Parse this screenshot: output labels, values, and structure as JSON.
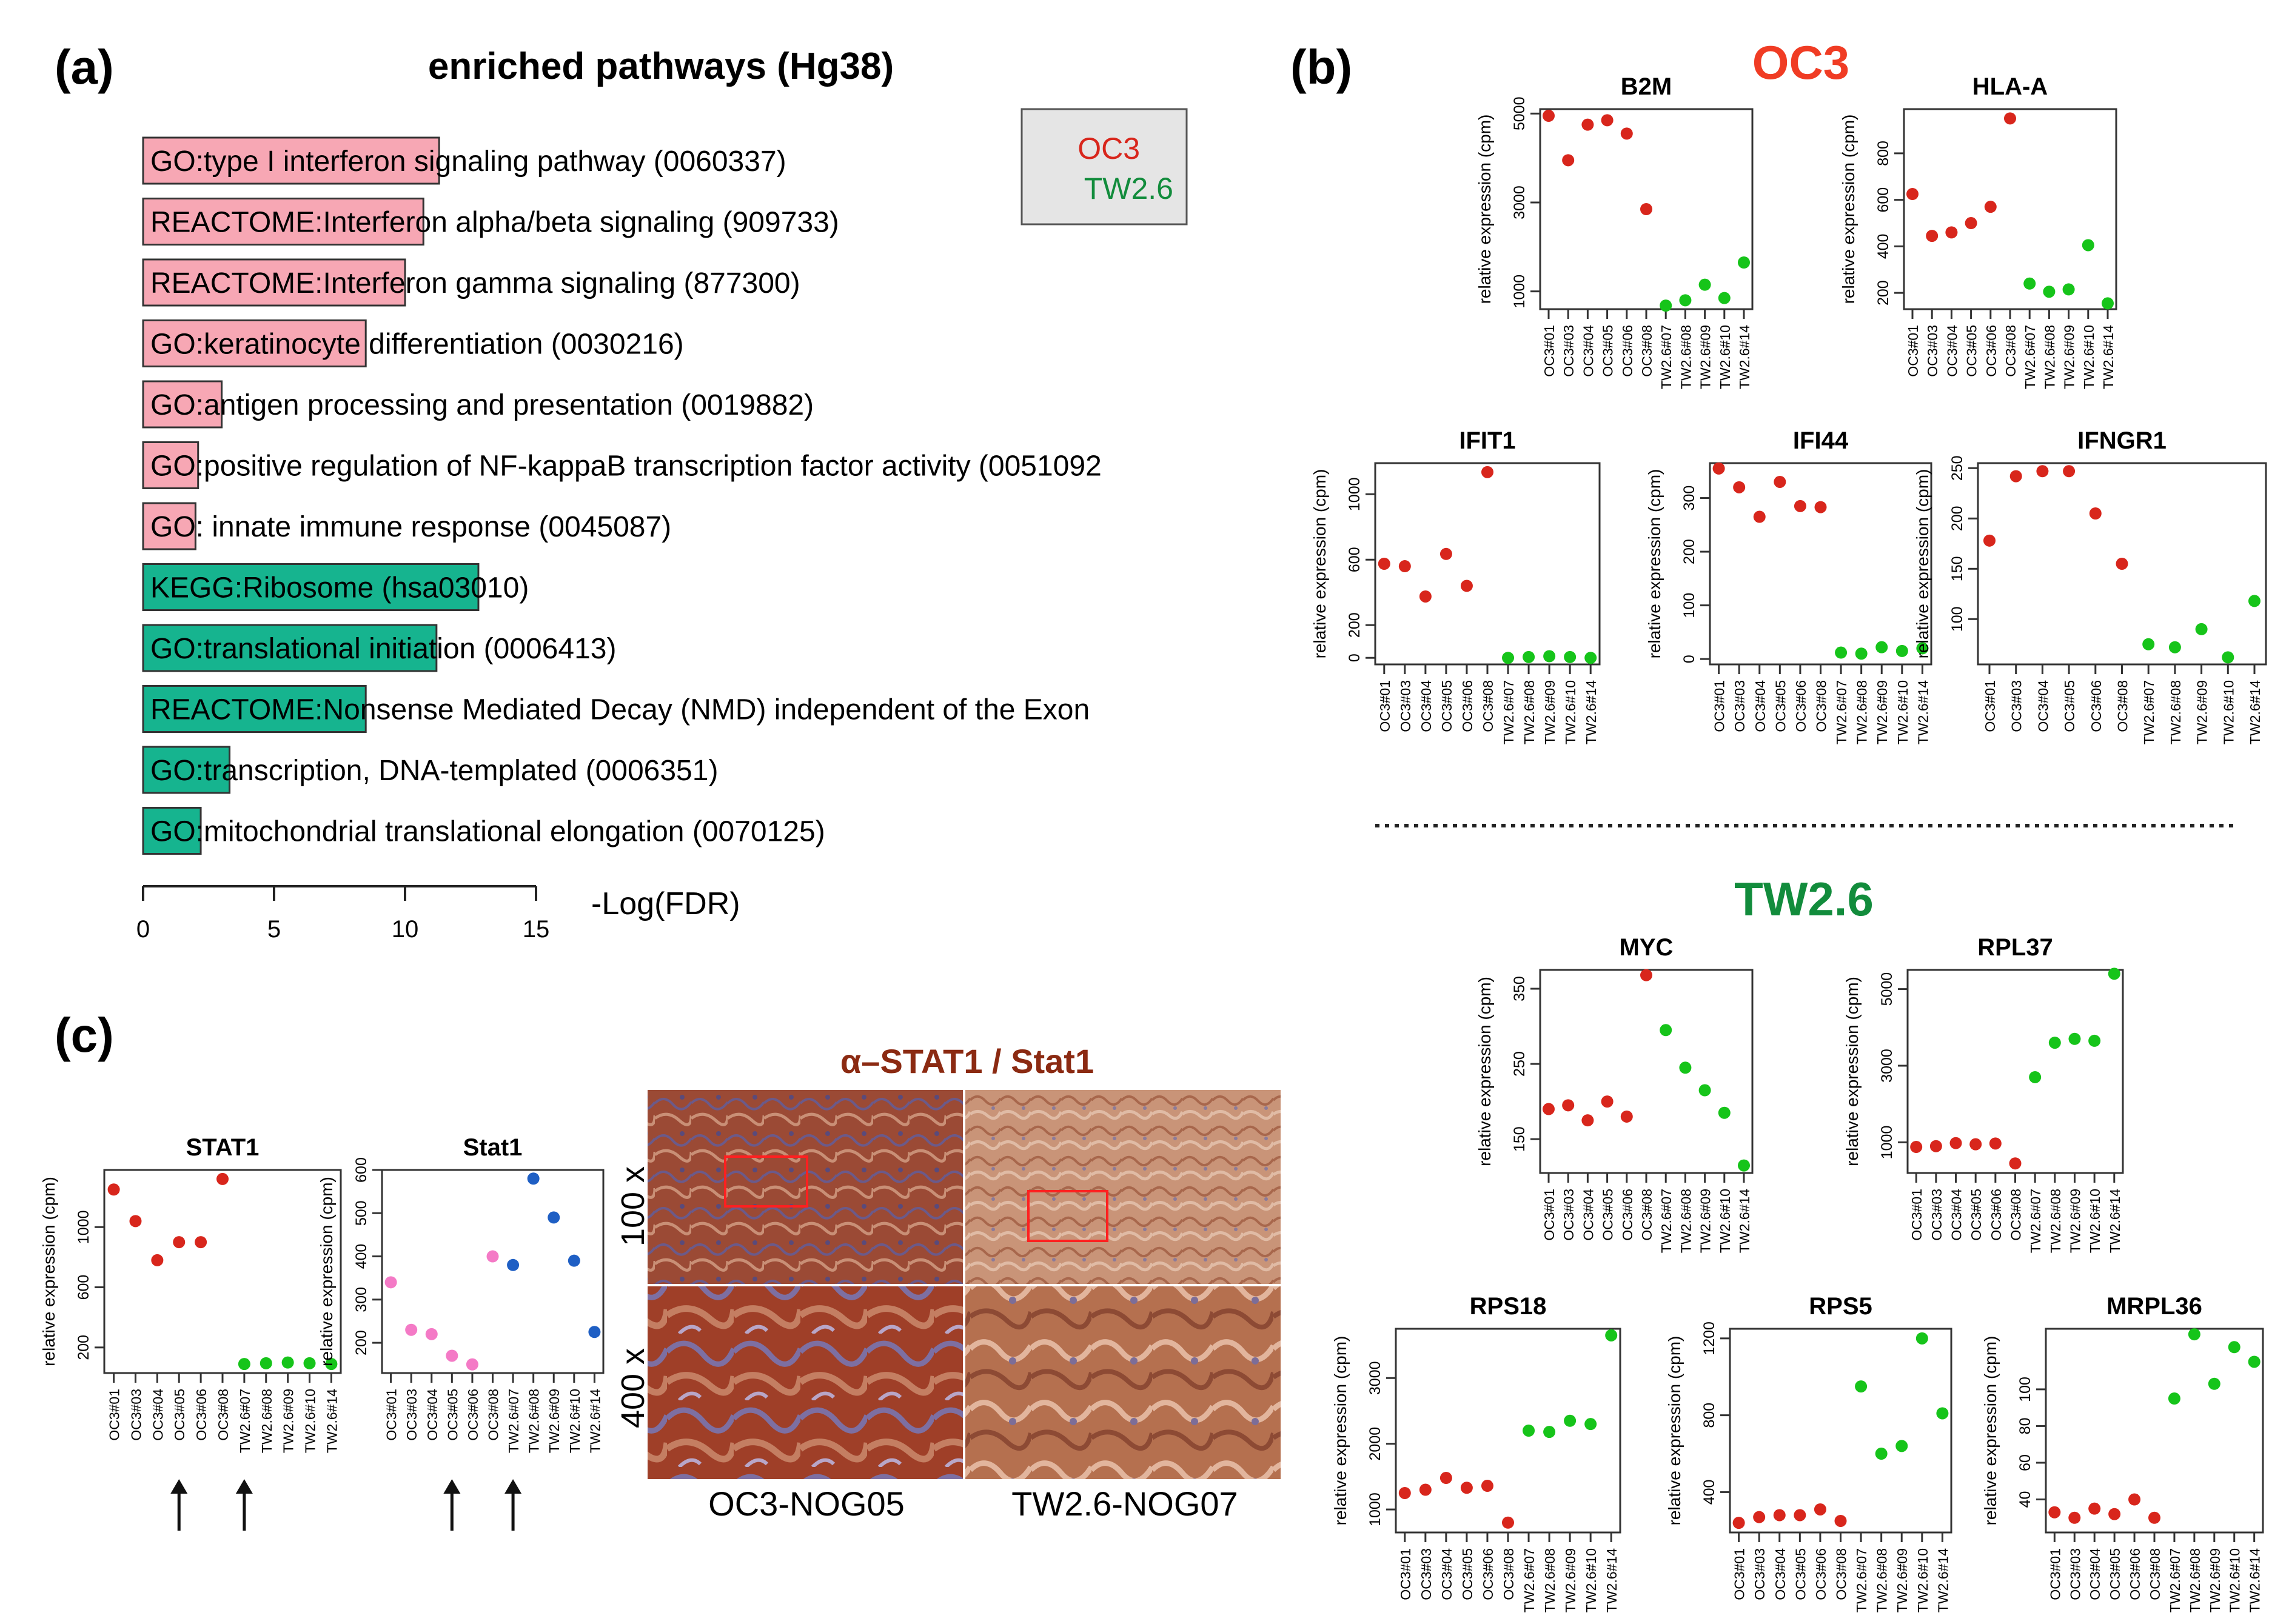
{
  "panel_labels": {
    "a": "(a)",
    "b": "(b)",
    "c": "(c)"
  },
  "colors": {
    "oc3": "#d8261c",
    "tw": "#16c41a",
    "tw_dark": "#128c3c",
    "bar_oc3": "#f7a7b4",
    "bar_tw": "#16b48f",
    "pink": "#f47ac6",
    "blue": "#1f5fc4",
    "stat_title": "#8b2a12",
    "legend_bg": "#e5e5e5"
  },
  "common": {
    "ylabel": "relative expression (cpm)",
    "samples": [
      "OC3#01",
      "OC3#03",
      "OC3#04",
      "OC3#05",
      "OC3#06",
      "OC3#08",
      "TW2.6#07",
      "TW2.6#08",
      "TW2.6#09",
      "TW2.6#10",
      "TW2.6#14"
    ]
  },
  "legend": {
    "oc3": "OC3",
    "tw": "TW2.6"
  },
  "section_titles": {
    "oc3": "OC3",
    "tw": "TW2.6"
  },
  "ihc": {
    "title": "α–STAT1 / Stat1",
    "mag_100": "100 x",
    "mag_400": "400 x",
    "col_left": "OC3-NOG05",
    "col_right": "TW2.6-NOG07"
  },
  "chart_data": [
    {
      "id": "pathways",
      "type": "bar",
      "orientation": "horizontal",
      "title": "enriched pathways (Hg38)",
      "xlabel": "-Log(FDR)",
      "xlim": [
        0,
        15
      ],
      "xticks": [
        0,
        5,
        10,
        15
      ],
      "bars": [
        {
          "label": "GO:type I interferon signaling pathway (0060337)",
          "value": 11.3,
          "group": "oc3"
        },
        {
          "label": "REACTOME:Interferon alpha/beta signaling (909733)",
          "value": 10.7,
          "group": "oc3"
        },
        {
          "label": "REACTOME:Interferon gamma signaling (877300)",
          "value": 10.0,
          "group": "oc3"
        },
        {
          "label": "GO:keratinocyte differentiation (0030216)",
          "value": 8.5,
          "group": "oc3"
        },
        {
          "label": "GO:antigen processing and presentation (0019882)",
          "value": 3.0,
          "group": "oc3"
        },
        {
          "label": "GO:positive regulation of NF-kappaB transcription factor activity (0051092",
          "value": 2.1,
          "group": "oc3"
        },
        {
          "label": "GO: innate immune response (0045087)",
          "value": 2.0,
          "group": "oc3"
        },
        {
          "label": "KEGG:Ribosome (hsa03010)",
          "value": 12.8,
          "group": "tw"
        },
        {
          "label": "GO:translational initiation (0006413)",
          "value": 11.2,
          "group": "tw"
        },
        {
          "label": "REACTOME:Nonsense Mediated Decay (NMD) independent of the Exon",
          "value": 8.5,
          "group": "tw"
        },
        {
          "label": "GO:transcription, DNA-templated (0006351)",
          "value": 3.3,
          "group": "tw"
        },
        {
          "label": "GO:mitochondrial translational elongation (0070125)",
          "value": 2.2,
          "group": "tw"
        }
      ]
    },
    {
      "id": "B2M",
      "type": "scatter",
      "title": "B2M",
      "ylim": [
        600,
        5100
      ],
      "yticks": [
        1000,
        3000,
        5000
      ],
      "values": [
        4950,
        3950,
        4750,
        4850,
        4550,
        2850,
        680,
        800,
        1150,
        850,
        1650
      ],
      "colors": [
        "oc3",
        "oc3",
        "oc3",
        "oc3",
        "oc3",
        "oc3",
        "tw",
        "tw",
        "tw",
        "tw",
        "tw"
      ]
    },
    {
      "id": "HLA-A",
      "type": "scatter",
      "title": "HLA-A",
      "ylim": [
        130,
        990
      ],
      "yticks": [
        200,
        400,
        600,
        800
      ],
      "values": [
        625,
        445,
        460,
        500,
        570,
        950,
        240,
        205,
        215,
        405,
        155
      ],
      "colors": [
        "oc3",
        "oc3",
        "oc3",
        "oc3",
        "oc3",
        "oc3",
        "tw",
        "tw",
        "tw",
        "tw",
        "tw"
      ]
    },
    {
      "id": "IFIT1",
      "type": "scatter",
      "title": "IFIT1",
      "ylim": [
        -40,
        1190
      ],
      "yticks": [
        0,
        200,
        600,
        1000
      ],
      "values": [
        575,
        560,
        375,
        635,
        440,
        1135,
        0,
        5,
        10,
        5,
        0
      ],
      "colors": [
        "oc3",
        "oc3",
        "oc3",
        "oc3",
        "oc3",
        "oc3",
        "tw",
        "tw",
        "tw",
        "tw",
        "tw"
      ]
    },
    {
      "id": "IFI44",
      "type": "scatter",
      "title": "IFI44",
      "ylim": [
        -10,
        365
      ],
      "yticks": [
        0,
        100,
        200,
        300
      ],
      "values": [
        355,
        320,
        265,
        330,
        285,
        283,
        12,
        10,
        22,
        15,
        20
      ],
      "colors": [
        "oc3",
        "oc3",
        "oc3",
        "oc3",
        "oc3",
        "oc3",
        "tw",
        "tw",
        "tw",
        "tw",
        "tw"
      ]
    },
    {
      "id": "IFNGR1",
      "type": "scatter",
      "title": "IFNGR1",
      "ylim": [
        55,
        255
      ],
      "yticks": [
        100,
        150,
        200,
        250
      ],
      "values": [
        178,
        242,
        247,
        247,
        205,
        155,
        75,
        72,
        90,
        62,
        118
      ],
      "colors": [
        "oc3",
        "oc3",
        "oc3",
        "oc3",
        "oc3",
        "oc3",
        "tw",
        "tw",
        "tw",
        "tw",
        "tw"
      ]
    },
    {
      "id": "MYC",
      "type": "scatter",
      "title": "MYC",
      "ylim": [
        105,
        375
      ],
      "yticks": [
        150,
        250,
        350
      ],
      "values": [
        190,
        195,
        175,
        200,
        180,
        368,
        295,
        245,
        215,
        185,
        115
      ],
      "colors": [
        "oc3",
        "oc3",
        "oc3",
        "oc3",
        "oc3",
        "oc3",
        "tw",
        "tw",
        "tw",
        "tw",
        "tw"
      ]
    },
    {
      "id": "RPL37",
      "type": "scatter",
      "title": "RPL37",
      "ylim": [
        200,
        5500
      ],
      "yticks": [
        1000,
        3000,
        5000
      ],
      "values": [
        880,
        900,
        980,
        950,
        970,
        450,
        2700,
        3600,
        3700,
        3650,
        5400
      ],
      "colors": [
        "oc3",
        "oc3",
        "oc3",
        "oc3",
        "oc3",
        "oc3",
        "tw",
        "tw",
        "tw",
        "tw",
        "tw"
      ]
    },
    {
      "id": "RPS18",
      "type": "scatter",
      "title": "RPS18",
      "ylim": [
        650,
        3750
      ],
      "yticks": [
        1000,
        2000,
        3000
      ],
      "values": [
        1250,
        1300,
        1480,
        1330,
        1360,
        800,
        2200,
        2180,
        2350,
        2300,
        3650
      ],
      "colors": [
        "oc3",
        "oc3",
        "oc3",
        "oc3",
        "oc3",
        "oc3",
        "tw",
        "tw",
        "tw",
        "tw",
        "tw"
      ]
    },
    {
      "id": "RPS5",
      "type": "scatter",
      "title": "RPS5",
      "ylim": [
        190,
        1250
      ],
      "yticks": [
        400,
        800,
        1200
      ],
      "values": [
        240,
        270,
        280,
        280,
        310,
        250,
        950,
        600,
        640,
        1200,
        810
      ],
      "colors": [
        "oc3",
        "oc3",
        "oc3",
        "oc3",
        "oc3",
        "oc3",
        "tw",
        "tw",
        "tw",
        "tw",
        "tw"
      ]
    },
    {
      "id": "MRPL36",
      "type": "scatter",
      "title": "MRPL36",
      "ylim": [
        22,
        133
      ],
      "yticks": [
        40,
        60,
        80,
        100
      ],
      "values": [
        33,
        30,
        35,
        32,
        40,
        30,
        95,
        130,
        103,
        123,
        115
      ],
      "colors": [
        "oc3",
        "oc3",
        "oc3",
        "oc3",
        "oc3",
        "oc3",
        "tw",
        "tw",
        "tw",
        "tw",
        "tw"
      ]
    },
    {
      "id": "STAT1",
      "type": "scatter",
      "title": "STAT1",
      "ylim": [
        30,
        1380
      ],
      "yticks": [
        200,
        600,
        1000
      ],
      "values": [
        1250,
        1040,
        780,
        900,
        900,
        1320,
        90,
        95,
        100,
        95,
        90
      ],
      "colors": [
        "oc3",
        "oc3",
        "oc3",
        "oc3",
        "oc3",
        "oc3",
        "tw",
        "tw",
        "tw",
        "tw",
        "tw"
      ],
      "arrows": [
        3,
        6
      ]
    },
    {
      "id": "Stat1",
      "type": "scatter",
      "title": "Stat1",
      "ylim": [
        130,
        600
      ],
      "yticks": [
        200,
        300,
        400,
        500,
        600
      ],
      "values": [
        340,
        230,
        220,
        170,
        150,
        400,
        380,
        580,
        490,
        390,
        225
      ],
      "colors": [
        "pink",
        "pink",
        "pink",
        "pink",
        "pink",
        "pink",
        "blue",
        "blue",
        "blue",
        "blue",
        "blue"
      ],
      "arrows": [
        3,
        6
      ]
    }
  ]
}
